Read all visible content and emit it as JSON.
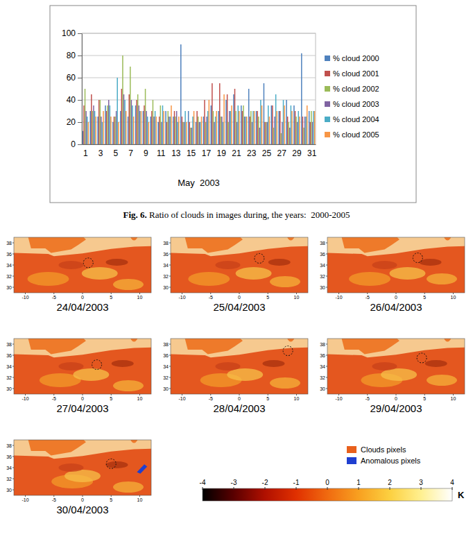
{
  "chart_data": {
    "type": "bar",
    "categories": [
      "1",
      null,
      "3",
      null,
      "5",
      null,
      "7",
      null,
      "9",
      null,
      "11",
      null,
      "13",
      null,
      "15",
      null,
      "17",
      null,
      "19",
      null,
      "21",
      null,
      "23",
      null,
      "25",
      null,
      "27",
      null,
      "29",
      null,
      "31"
    ],
    "series": [
      {
        "name": "% cloud 2000",
        "color": "#4f81bd",
        "values": [
          12,
          30,
          25,
          35,
          20,
          30,
          25,
          35,
          30,
          25,
          20,
          30,
          25,
          90,
          30,
          20,
          25,
          35,
          30,
          40,
          45,
          35,
          50,
          30,
          55,
          35,
          30,
          40,
          35,
          82,
          30
        ]
      },
      {
        "name": "% cloud 2001",
        "color": "#c0504d",
        "values": [
          35,
          45,
          40,
          30,
          25,
          50,
          45,
          40,
          35,
          30,
          25,
          20,
          30,
          25,
          20,
          30,
          40,
          55,
          55,
          45,
          50,
          30,
          25,
          30,
          20,
          35,
          30,
          25,
          30,
          25,
          20
        ]
      },
      {
        "name": "% cloud 2002",
        "color": "#9bbb59",
        "values": [
          50,
          30,
          40,
          35,
          25,
          80,
          70,
          45,
          50,
          40,
          35,
          30,
          25,
          20,
          15,
          25,
          20,
          30,
          25,
          20,
          30,
          35,
          30,
          25,
          20,
          15,
          10,
          20,
          25,
          15,
          30
        ]
      },
      {
        "name": "% cloud 2003",
        "color": "#8064a2",
        "values": [
          30,
          35,
          25,
          40,
          30,
          45,
          40,
          35,
          30,
          25,
          20,
          25,
          30,
          20,
          15,
          20,
          25,
          20,
          25,
          30,
          20,
          25,
          20,
          15,
          20,
          25,
          20,
          15,
          20,
          25,
          20
        ]
      },
      {
        "name": "% cloud 2004",
        "color": "#4bacc6",
        "values": [
          25,
          30,
          20,
          35,
          60,
          40,
          35,
          30,
          25,
          30,
          35,
          25,
          20,
          30,
          25,
          20,
          30,
          25,
          20,
          30,
          35,
          25,
          30,
          40,
          35,
          45,
          40,
          35,
          30,
          25,
          30
        ]
      },
      {
        "name": "% cloud 2005",
        "color": "#f79646",
        "values": [
          20,
          25,
          30,
          25,
          20,
          30,
          25,
          30,
          20,
          25,
          30,
          35,
          25,
          20,
          30,
          25,
          40,
          30,
          45,
          35,
          30,
          25,
          30,
          35,
          25,
          30,
          35,
          30,
          25,
          35,
          30
        ]
      }
    ],
    "x_label": "May  2003",
    "ylim": [
      0,
      100
    ],
    "yticks": [
      0,
      20,
      40,
      60,
      80,
      100
    ],
    "grid": true,
    "legend": "right"
  },
  "caption": {
    "label": "Fig. 6.",
    "text": "Ratio of clouds in images during, the years:  2000-2005"
  },
  "maps": {
    "panels": [
      "24/04/2003",
      "25/04/2003",
      "26/04/2003",
      "27/04/2003",
      "28/04/2003",
      "29/04/2003",
      "30/04/2003"
    ],
    "xlim": [
      -12,
      12
    ],
    "xticks": [
      -10,
      -5,
      0,
      5,
      10
    ],
    "ylim": [
      29,
      39
    ],
    "yticks": [
      30,
      32,
      34,
      36,
      38
    ],
    "legend": [
      {
        "label": "Clouds pixels",
        "color": "#e8601c"
      },
      {
        "label": "Anomalous pixels",
        "color": "#1f3fd0"
      }
    ],
    "colorbar": {
      "range": [
        -4,
        4
      ],
      "ticks": [
        -4,
        -3,
        -2,
        -1,
        0,
        1,
        2,
        3,
        4
      ],
      "label": "K",
      "colors": [
        "#000000",
        "#5a0000",
        "#b01000",
        "#e03000",
        "#f06a10",
        "#f8a020",
        "#fcd040",
        "#fff090",
        "#ffffff"
      ]
    }
  }
}
